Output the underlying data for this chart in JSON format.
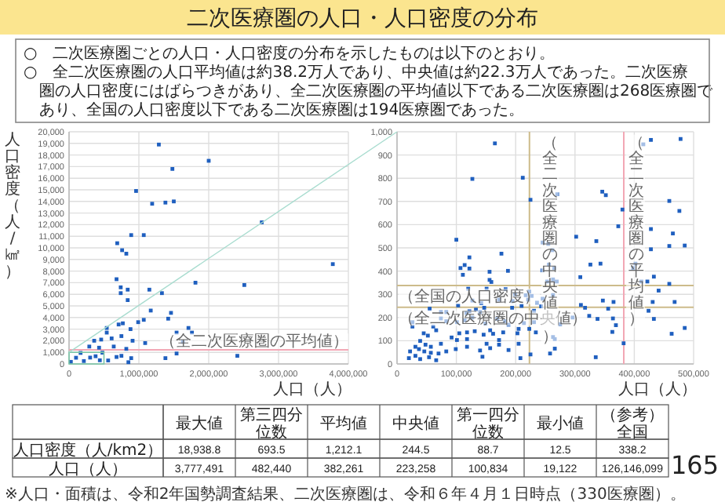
{
  "chart_data": [
    {
      "type": "other",
      "title": "二次医療圏の人口・人口密度の分布",
      "annotations": [
        "○　二次医療圏ごとの人口・人口密度の分布を示したものは以下のとおり。",
        "○　全二次医療圏の人口平均値は約38.2万人であり、中央値は約22.3万人であった。二次医療圏の人口密度にはばらつきがあり、全二次医療圏の平均値以下である二次医療圏は268医療圏であり、全国の人口密度以下である二次医療圏は194医療圏であった。"
      ]
    },
    {
      "type": "scatter",
      "xlabel": "人口（人）",
      "ylabel": "人口密度（人/㎢）",
      "xlim": [
        0,
        4000000
      ],
      "ylim": [
        0,
        20000
      ],
      "grid": true,
      "marker": "square",
      "xticks": [
        0,
        {
          "value": 1000000,
          "label": "1,000,000"
        },
        {
          "value": 2000000,
          "label": "2,000,000"
        },
        {
          "value": 3000000,
          "label": "3,000,000"
        },
        {
          "value": 4000000,
          "label": "4,000,000"
        }
      ],
      "yticks": [
        0,
        {
          "value": 1000,
          "label": "1,000"
        },
        {
          "value": 2000,
          "label": "2,000"
        },
        {
          "value": 3000,
          "label": "3,000"
        },
        {
          "value": 4000,
          "label": "4,000"
        },
        {
          "value": 5000,
          "label": "5,000"
        },
        {
          "value": 6000,
          "label": "6,000"
        },
        {
          "value": 7000,
          "label": "7,000"
        },
        {
          "value": 8000,
          "label": "8,000"
        },
        {
          "value": 9000,
          "label": "9,000"
        },
        {
          "value": 10000,
          "label": "10,000"
        },
        {
          "value": 11000,
          "label": "11,000"
        },
        {
          "value": 12000,
          "label": "12,000"
        },
        {
          "value": 13000,
          "label": "13,000"
        },
        {
          "value": 14000,
          "label": "14,000"
        },
        {
          "value": 15000,
          "label": "15,000"
        },
        {
          "value": 16000,
          "label": "16,000"
        },
        {
          "value": 17000,
          "label": "17,000"
        },
        {
          "value": 18000,
          "label": "18,000"
        },
        {
          "value": 19000,
          "label": "19,000"
        },
        {
          "value": 20000,
          "label": "20,000"
        }
      ],
      "ref_lines": [
        {
          "axis": "y",
          "value": 1212.1,
          "label": "（全二次医療圏の平均値）",
          "color": "#f2a7b5"
        }
      ],
      "series": [
        {
          "color": "#1f5fbf",
          "x": [
            1286000,
            2000000,
            1480000,
            960000,
            1190000,
            1380000,
            1500000,
            2760000,
            890000,
            1070000,
            690000,
            760000,
            820000,
            3777000,
            1810000,
            680000,
            2510000,
            740000,
            840000,
            1150000,
            740000,
            1330000,
            840000,
            1170000,
            1460000,
            1420000,
            1070000,
            990000,
            770000,
            710000,
            540000,
            1710000,
            1540000,
            1760000,
            880000,
            540000,
            610000,
            750000,
            910000,
            1630000,
            1090000,
            360000,
            460000,
            640000,
            1540000,
            1380000,
            2410000,
            820000,
            290000,
            430000,
            890000,
            750000,
            680000,
            560000,
            850000,
            26000,
            100000,
            165000,
            212000,
            302000,
            380000,
            478000,
            441000
          ],
          "values": [
            18900,
            17500,
            16800,
            14900,
            13800,
            13900,
            14000,
            12200,
            11100,
            11100,
            10400,
            9800,
            9500,
            8600,
            7000,
            7300,
            6800,
            6600,
            6400,
            6400,
            6100,
            6100,
            5500,
            4600,
            4400,
            3900,
            3800,
            3600,
            3500,
            3400,
            3100,
            3100,
            2700,
            2700,
            3000,
            2700,
            2200,
            2400,
            2000,
            1900,
            1800,
            2000,
            2100,
            1500,
            900,
            500,
            700,
            1300,
            1500,
            1400,
            500,
            700,
            600,
            300,
            150,
            180,
            535,
            950,
            250,
            548,
            665,
            969,
            316
          ]
        }
      ]
    },
    {
      "type": "scatter",
      "xlabel": "人口（人）",
      "xlim": [
        0,
        500000
      ],
      "ylim": [
        0,
        1000
      ],
      "grid": true,
      "marker": "square",
      "xticks": [
        0,
        {
          "value": 100000,
          "label": "100,000"
        },
        {
          "value": 200000,
          "label": "200,000"
        },
        {
          "value": 300000,
          "label": "300,000"
        },
        {
          "value": 400000,
          "label": "400,000"
        },
        {
          "value": 500000,
          "label": "500,000"
        }
      ],
      "yticks": [
        0,
        100,
        200,
        300,
        400,
        500,
        600,
        700,
        800,
        900,
        {
          "value": 1000,
          "label": "1,000"
        }
      ],
      "ref_lines": [
        {
          "axis": "x",
          "value": 223258,
          "label": "（全二次医療圏の中央値）",
          "color": "#cdbb8b"
        },
        {
          "axis": "x",
          "value": 382261,
          "label": "（全二次医療圏の平均値）",
          "color": "#f2a7b5"
        },
        {
          "axis": "y",
          "value": 338.2,
          "label": "（全国の人口密度）",
          "color": "#cdbb8b"
        },
        {
          "axis": "y",
          "value": 244.5,
          "label": "（全二次医療圏の中央値）",
          "color": "#cdbb8b"
        }
      ],
      "series": [
        {
          "color": "#1f5fbf",
          "x": [
            165000,
            127000,
            212000,
            225000,
            270000,
            100000,
            122000,
            107000,
            114000,
            122000,
            176000,
            111000,
            187000,
            156000,
            156000,
            159000,
            151000,
            120000,
            183000,
            127000,
            142000,
            172000,
            195000,
            199000,
            194000,
            210000,
            147000,
            133000,
            122000,
            140000,
            117000,
            103000,
            55000,
            74000,
            83000,
            74000,
            83000,
            61000,
            26000,
            26000,
            101000,
            114000,
            127000,
            149000,
            157000,
            169000,
            182000,
            188000,
            179000,
            162000,
            172000,
            151000,
            146000,
            131000,
            118000,
            105000,
            92000,
            101000,
            118000,
            74000,
            66000,
            45000,
            52000,
            39000,
            48000,
            57000,
            31000,
            22000,
            37000,
            46000,
            57000,
            70000,
            83000,
            31000,
            20000,
            39000,
            54000,
            66000,
            99000,
            118000,
            140000,
            157000,
            172000,
            144000,
            188000,
            205000,
            203000,
            205000,
            214000,
            208000,
            225000,
            221000,
            217000,
            227000,
            223000,
            236000,
            246000,
            243000,
            231000,
            231000,
            223000,
            234000,
            263000,
            266000,
            275000,
            266000,
            258000,
            296000,
            317000,
            310000,
            324000,
            338000,
            347000,
            356000,
            365000,
            364000,
            369000,
            363000,
            335000,
            382000,
            246000,
            255000,
            262000,
            265000,
            256000,
            245000,
            263000,
            269000,
            253000,
            263000,
            302000,
            309000,
            326000,
            343000,
            336000,
            346000,
            352000,
            373000,
            380000,
            415000,
            428000,
            478000,
            412000,
            398000,
            402000,
            428000,
            428000,
            465000,
            459000,
            485000,
            476000,
            459000,
            459000,
            441000,
            431000,
            468000,
            424000,
            433000,
            463000,
            485000,
            433000,
            422000
          ],
          "values": [
            950,
            797,
            802,
            707,
            731,
            535,
            411,
            413,
            426,
            459,
            475,
            384,
            401,
            397,
            362,
            353,
            324,
            324,
            322,
            273,
            262,
            277,
            271,
            300,
            242,
            250,
            242,
            234,
            227,
            223,
            219,
            252,
            238,
            223,
            223,
            196,
            184,
            161,
            180,
            161,
            180,
            188,
            200,
            174,
            145,
            194,
            184,
            169,
            136,
            130,
            103,
            87,
            126,
            141,
            136,
            132,
            114,
            103,
            107,
            87,
            145,
            132,
            122,
            99,
            83,
            74,
            74,
            54,
            64,
            54,
            48,
            45,
            54,
            35,
            25,
            21,
            29,
            16,
            64,
            74,
            58,
            68,
            83,
            31,
            60,
            87,
            132,
            151,
            176,
            25,
            41,
            277,
            296,
            293,
            312,
            264,
            281,
            248,
            229,
            180,
            151,
            136,
            116,
            107,
            171,
            66,
            45,
            200,
            242,
            254,
            207,
            194,
            273,
            238,
            267,
            196,
            167,
            138,
            29,
            89,
            523,
            517,
            490,
            413,
            428,
            403,
            364,
            355,
            355,
            297,
            548,
            374,
            428,
            432,
            529,
            742,
            727,
            593,
            665,
            946,
            965,
            969,
            355,
            413,
            432,
            494,
            581,
            562,
            508,
            510,
            659,
            702,
            345,
            316,
            267,
            267,
            229,
            194,
            130,
            155,
            376,
            355
          ]
        }
      ]
    },
    {
      "type": "other",
      "categories": [
        "最大値",
        "第三四分位数",
        "平均値",
        "中央値",
        "第一四分位数",
        "最小値",
        "（参考）全国"
      ],
      "y_categories": [
        "人口密度（人/km2）",
        "人口（人）"
      ],
      "cell_labels": [
        [
          "18,938.8",
          "693.5",
          "1,212.1",
          "244.5",
          "88.7",
          "12.5",
          "338.2"
        ],
        [
          "3,777,491",
          "482,440",
          "382,261",
          "223,258",
          "100,834",
          "19,122",
          "126,146,099"
        ]
      ],
      "annotations": [
        "※人口・面積は、令和2年国勢調査結果、二次医療圏は、令和６年４月１日時点（330医療圏）。",
        "165"
      ]
    }
  ]
}
